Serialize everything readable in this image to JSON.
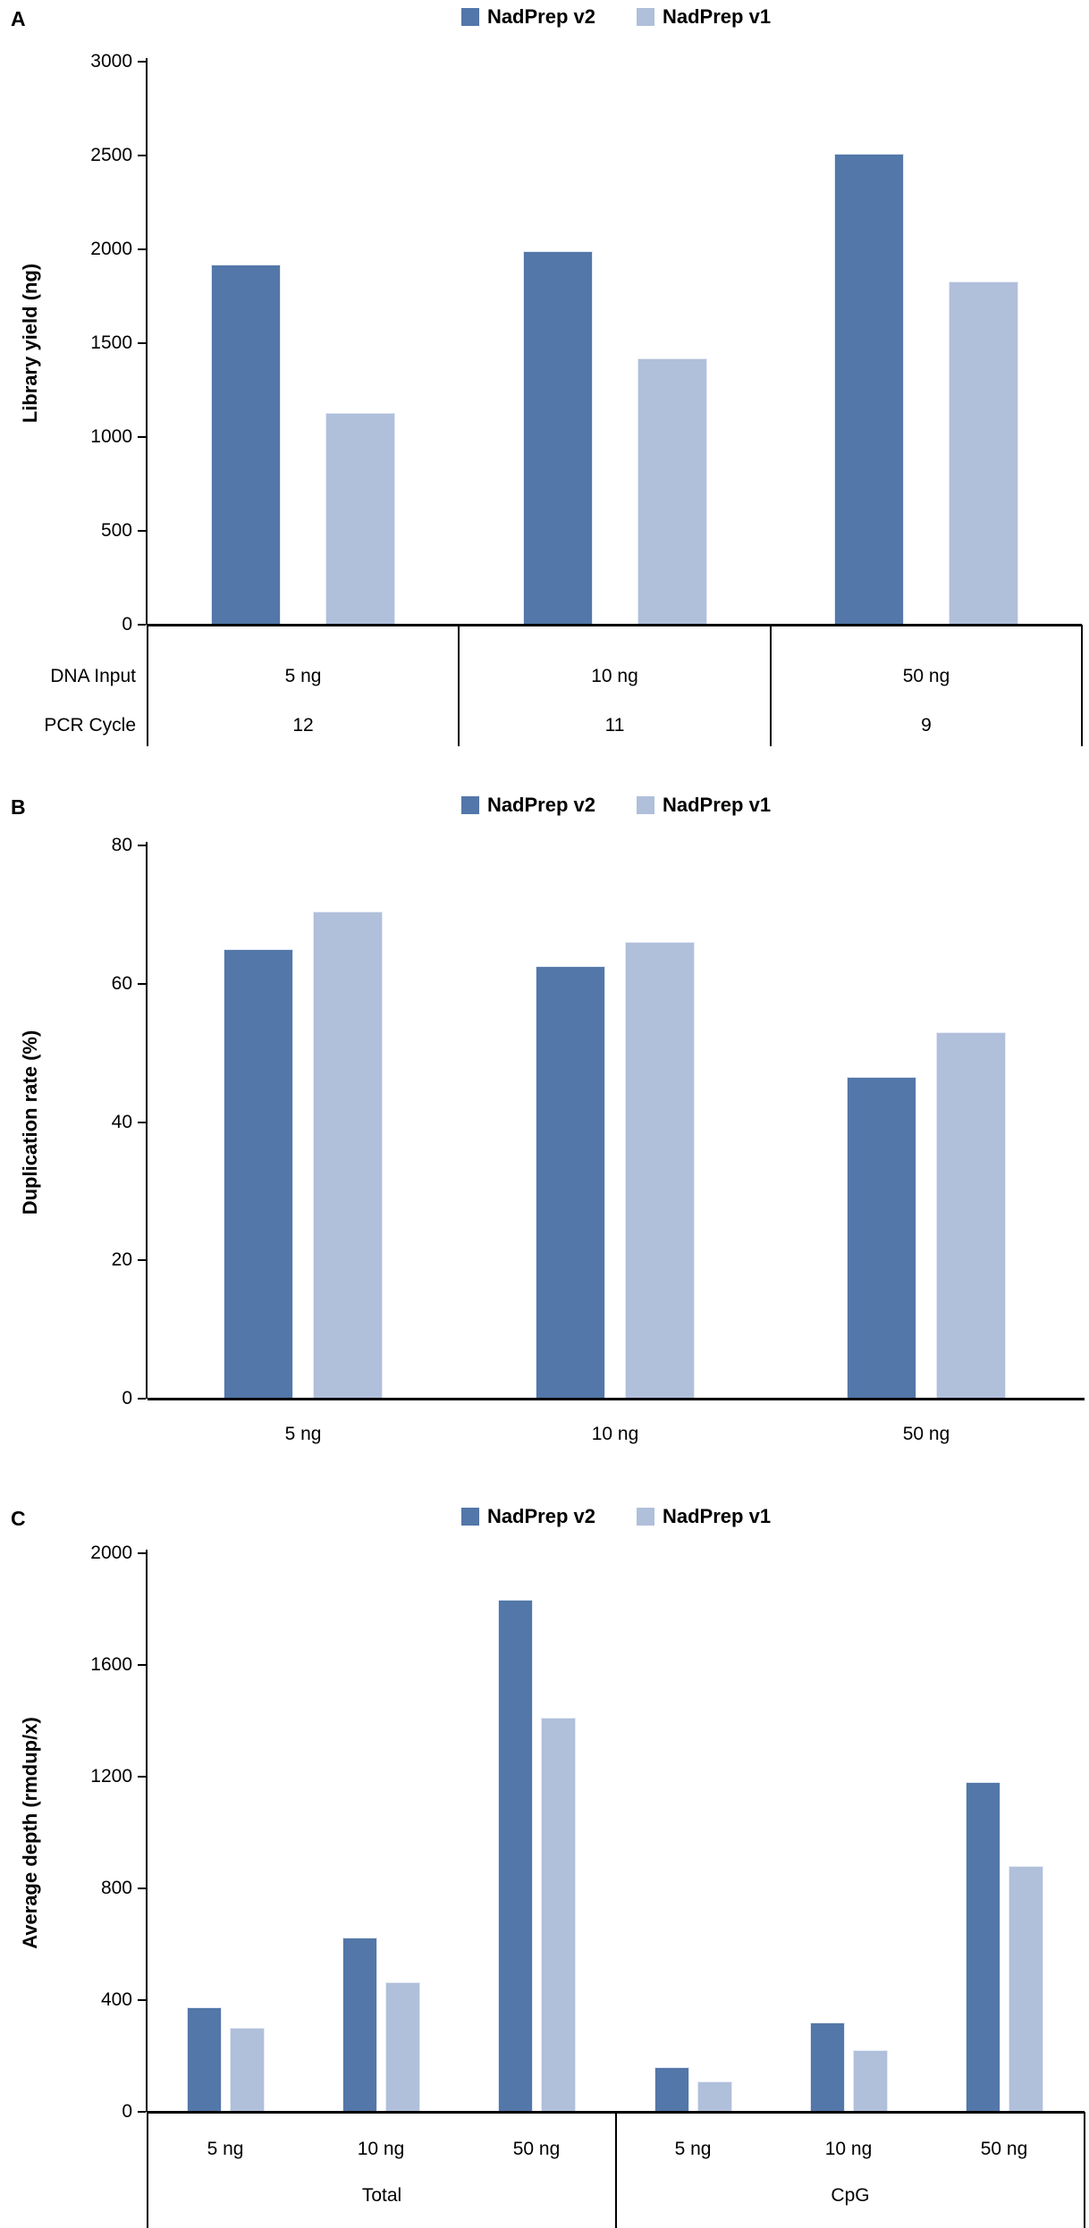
{
  "figure": {
    "series_names": [
      "NadPrep v2",
      "NadPrep v1"
    ],
    "colors": {
      "nadprep_v2": "#5277a8",
      "nadprep_v1": "#b0bfda"
    }
  },
  "chart_data": [
    {
      "type": "bar",
      "panel": "A",
      "ylabel": "Library yield (ng)",
      "ylim": [
        0,
        3000
      ],
      "ytick_step": 500,
      "grid": false,
      "legend_position": "top-center",
      "categories": [
        "5 ng",
        "10 ng",
        "50 ng"
      ],
      "series": [
        {
          "name": "NadPrep v2",
          "values": [
            1920,
            1990,
            2510
          ]
        },
        {
          "name": "NadPrep v1",
          "values": [
            1130,
            1420,
            1830
          ]
        }
      ],
      "xaxis_table": {
        "row_labels": [
          "DNA Input",
          "PCR Cycle"
        ],
        "rows": [
          [
            "5 ng",
            "10 ng",
            "50 ng"
          ],
          [
            "12",
            "11",
            "9"
          ]
        ]
      }
    },
    {
      "type": "bar",
      "panel": "B",
      "ylabel": "Duplication rate (%)",
      "ylim": [
        0,
        80
      ],
      "ytick_step": 20,
      "grid": false,
      "legend_position": "top-center",
      "categories": [
        "5 ng",
        "10 ng",
        "50 ng"
      ],
      "series": [
        {
          "name": "NadPrep v2",
          "values": [
            65,
            62.5,
            46.5
          ]
        },
        {
          "name": "NadPrep v1",
          "values": [
            70.5,
            66,
            53
          ]
        }
      ]
    },
    {
      "type": "bar",
      "panel": "C",
      "ylabel": "Average depth (rmdup/x)",
      "ylim": [
        0,
        2000
      ],
      "ytick_step": 400,
      "grid": false,
      "legend_position": "top-center",
      "group_labels": [
        "Total",
        "CpG"
      ],
      "categories": [
        "5 ng",
        "10 ng",
        "50 ng",
        "5 ng",
        "10 ng",
        "50 ng"
      ],
      "series": [
        {
          "name": "NadPrep v2",
          "values": [
            375,
            625,
            1835,
            160,
            320,
            1180
          ]
        },
        {
          "name": "NadPrep v1",
          "values": [
            300,
            465,
            1410,
            110,
            220,
            880
          ]
        }
      ]
    }
  ]
}
